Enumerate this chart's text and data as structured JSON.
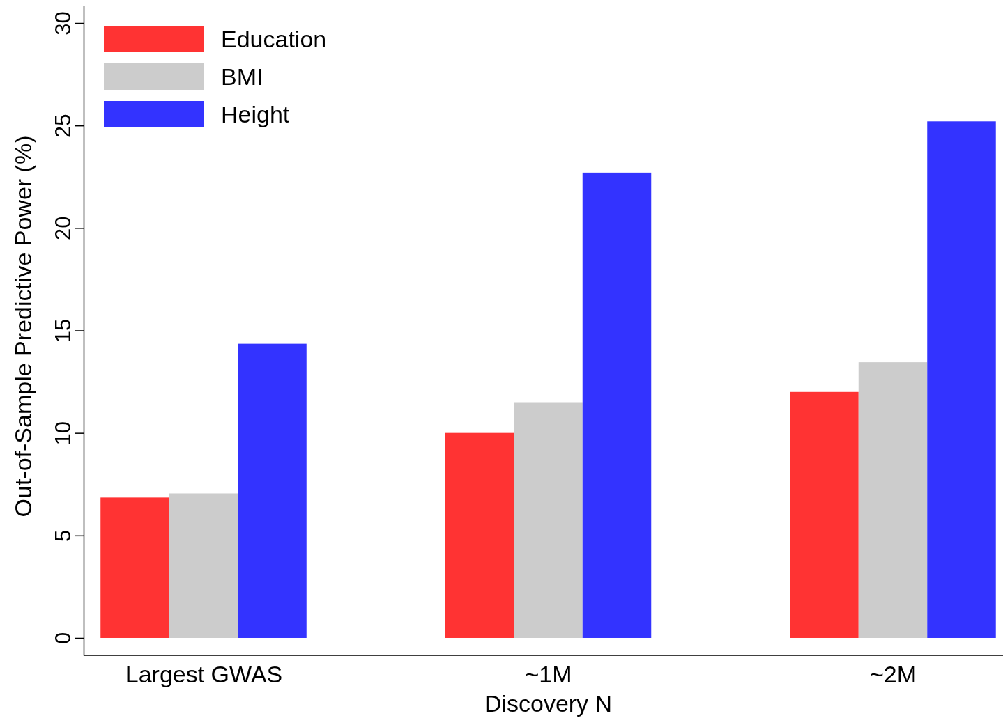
{
  "chart_data": {
    "type": "bar",
    "xlabel": "Discovery N",
    "ylabel": "Out-of-Sample Predictive Power (%)",
    "categories": [
      "Largest GWAS",
      "~1M",
      "~2M"
    ],
    "series": [
      {
        "name": "Education",
        "color": "#ff3333",
        "values": [
          6.85,
          10.0,
          12.0
        ]
      },
      {
        "name": "BMI",
        "color": "#cccccc",
        "values": [
          7.05,
          11.5,
          13.45
        ]
      },
      {
        "name": "Height",
        "color": "#3333ff",
        "values": [
          14.35,
          22.7,
          25.2
        ]
      }
    ],
    "ylim": [
      -0.85,
      30.85
    ],
    "yticks": [
      0,
      5,
      10,
      15,
      20,
      25,
      30
    ],
    "grid": false,
    "legend": "top left"
  }
}
